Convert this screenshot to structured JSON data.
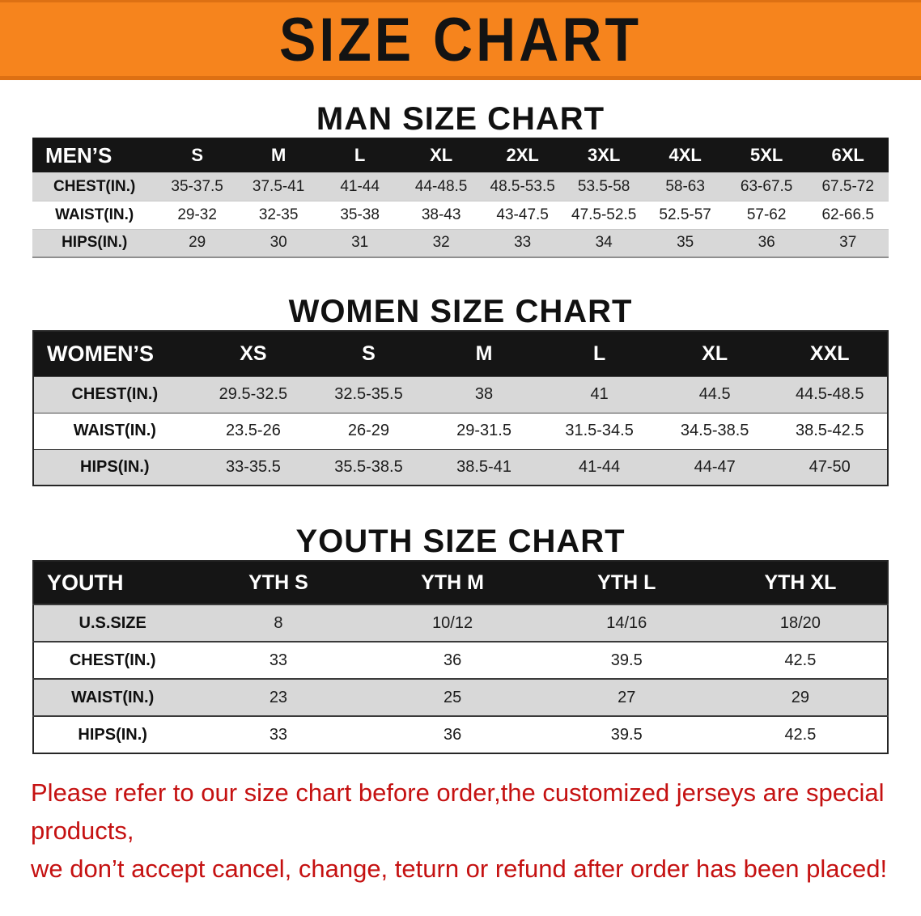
{
  "banner": {
    "title": "SIZE CHART",
    "bg_color": "#f6841d",
    "text_color": "#131313"
  },
  "colors": {
    "table_header_bg": "#151515",
    "table_header_text": "#ffffff",
    "stripe_row_bg": "#d8d8d8",
    "footer_text": "#c51111"
  },
  "sections": [
    {
      "slug": "men",
      "heading": "MAN SIZE CHART",
      "table": {
        "header": [
          "MEN’S",
          "S",
          "M",
          "L",
          "XL",
          "2XL",
          "3XL",
          "4XL",
          "5XL",
          "6XL"
        ],
        "rows": [
          [
            "CHEST(IN.)",
            "35-37.5",
            "37.5-41",
            "41-44",
            "44-48.5",
            "48.5-53.5",
            "53.5-58",
            "58-63",
            "63-67.5",
            "67.5-72"
          ],
          [
            "WAIST(IN.)",
            "29-32",
            "32-35",
            "35-38",
            "38-43",
            "43-47.5",
            "47.5-52.5",
            "52.5-57",
            "57-62",
            "62-66.5"
          ],
          [
            "HIPS(IN.)",
            "29",
            "30",
            "31",
            "32",
            "33",
            "34",
            "35",
            "36",
            "37"
          ]
        ]
      }
    },
    {
      "slug": "women",
      "heading": "WOMEN SIZE CHART",
      "table": {
        "header": [
          "WOMEN’S",
          "XS",
          "S",
          "M",
          "L",
          "XL",
          "XXL"
        ],
        "rows": [
          [
            "CHEST(IN.)",
            "29.5-32.5",
            "32.5-35.5",
            "38",
            "41",
            "44.5",
            "44.5-48.5"
          ],
          [
            "WAIST(IN.)",
            "23.5-26",
            "26-29",
            "29-31.5",
            "31.5-34.5",
            "34.5-38.5",
            "38.5-42.5"
          ],
          [
            "HIPS(IN.)",
            "33-35.5",
            "35.5-38.5",
            "38.5-41",
            "41-44",
            "44-47",
            "47-50"
          ]
        ]
      }
    },
    {
      "slug": "youth",
      "heading": "YOUTH SIZE CHART",
      "table": {
        "header": [
          "YOUTH",
          "YTH S",
          "YTH M",
          "YTH L",
          "YTH XL"
        ],
        "rows": [
          [
            "U.S.SIZE",
            "8",
            "10/12",
            "14/16",
            "18/20"
          ],
          [
            "CHEST(IN.)",
            "33",
            "36",
            "39.5",
            "42.5"
          ],
          [
            "WAIST(IN.)",
            "23",
            "25",
            "27",
            "29"
          ],
          [
            "HIPS(IN.)",
            "33",
            "36",
            "39.5",
            "42.5"
          ]
        ]
      }
    }
  ],
  "footer": {
    "line1": "Please refer to our size chart before order,the customized jerseys are special products,",
    "line2": "we don’t accept cancel, change, teturn or refund after order has been placed!"
  }
}
